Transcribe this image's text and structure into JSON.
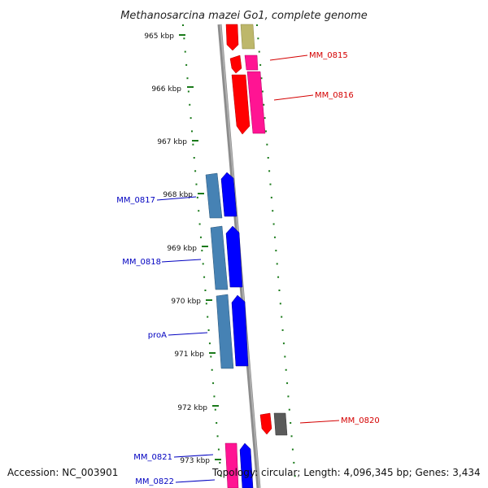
{
  "title": "Methanosarcina mazei Go1, complete genome",
  "accession_text": "Accession: NC_003901",
  "summary_text": "Topology: circular; Length: 4,096,345 bp; Genes: 3,434",
  "ruler_labels": [
    "965 kbp",
    "966 kbp",
    "967 kbp",
    "968 kbp",
    "969 kbp",
    "970 kbp",
    "971 kbp",
    "972 kbp",
    "973 kbp"
  ],
  "forward_labels": [
    "MM_0815",
    "MM_0816",
    "MM_0820"
  ],
  "reverse_labels": [
    "MM_0817",
    "MM_0818",
    "proA",
    "MM_0821",
    "MM_0822"
  ],
  "colors": {
    "backbone": "#8a8a8a",
    "ruler_ticks": "#1a7a1a",
    "forward_label": "#d40000",
    "reverse_label": "#0000c0",
    "red_gene": "#ff0000",
    "magenta_gene": "#ff1493",
    "khaki_gene": "#bdb76b",
    "blue_gene": "#0000ff",
    "steelblue_gene": "#4682b4",
    "gray_gene": "#555555"
  }
}
